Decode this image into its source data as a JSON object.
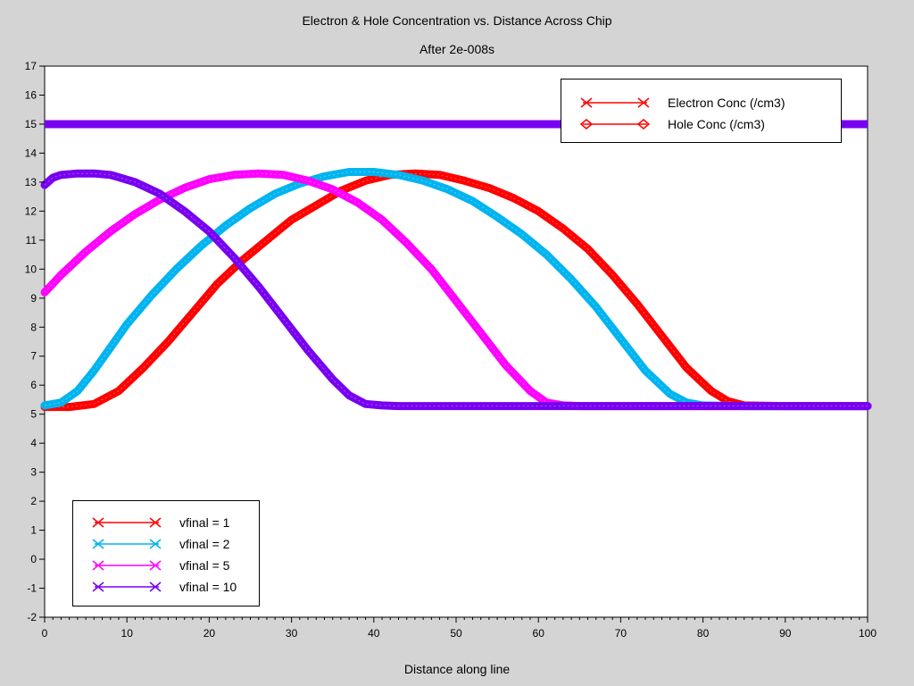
{
  "chart_data": {
    "type": "line",
    "title": "Electron & Hole Concentration vs. Distance Across Chip",
    "subtitle": "After 2e-008s",
    "xlabel": "Distance along line",
    "ylabel": "",
    "xlim": [
      0,
      100
    ],
    "ylim": [
      -2,
      17
    ],
    "x_ticks": [
      "0",
      "10",
      "20",
      "30",
      "40",
      "50",
      "60",
      "70",
      "80",
      "90",
      "100"
    ],
    "y_ticks": [
      "-2",
      "-1",
      "0",
      "1",
      "2",
      "3",
      "4",
      "5",
      "6",
      "7",
      "8",
      "9",
      "10",
      "11",
      "12",
      "13",
      "14",
      "15",
      "16",
      "17"
    ],
    "grid": false,
    "type_legend": {
      "placement": "top-right",
      "entries": [
        {
          "label": "Electron Conc (/cm3)",
          "marker": "x"
        },
        {
          "label": "Hole Conc (/cm3)",
          "marker": "diamond"
        }
      ]
    },
    "series_legend": {
      "placement": "bottom-left",
      "entries": [
        {
          "label": "vfinal = 1",
          "color": "#ff0000"
        },
        {
          "label": "vfinal = 2",
          "color": "#00b4f0"
        },
        {
          "label": "vfinal = 5",
          "color": "#ff00ff"
        },
        {
          "label": "vfinal = 10",
          "color": "#7800f0"
        }
      ]
    },
    "hole_conc": {
      "value": 15.0,
      "x": [
        0,
        100
      ]
    },
    "series": [
      {
        "name": "vfinal = 1",
        "color": "#ff0000",
        "x": [
          0,
          3,
          6,
          9,
          12,
          15,
          18,
          21,
          24,
          27,
          30,
          33,
          36,
          39,
          42,
          45,
          48,
          51,
          54,
          57,
          60,
          63,
          66,
          69,
          72,
          75,
          78,
          81,
          83,
          85,
          90,
          100
        ],
        "y": [
          5.25,
          5.25,
          5.35,
          5.8,
          6.6,
          7.5,
          8.5,
          9.5,
          10.3,
          11.0,
          11.7,
          12.2,
          12.7,
          13.05,
          13.25,
          13.3,
          13.25,
          13.05,
          12.8,
          12.45,
          12.0,
          11.4,
          10.7,
          9.8,
          8.8,
          7.7,
          6.6,
          5.8,
          5.45,
          5.3,
          5.28,
          5.28
        ]
      },
      {
        "name": "vfinal = 2",
        "color": "#00b4f0",
        "x": [
          0,
          2,
          4,
          6,
          8,
          10,
          13,
          16,
          19,
          22,
          25,
          28,
          31,
          34,
          37,
          40,
          43,
          46,
          49,
          52,
          55,
          58,
          61,
          64,
          67,
          70,
          73,
          76,
          78,
          80,
          85,
          100
        ],
        "y": [
          5.3,
          5.4,
          5.8,
          6.5,
          7.3,
          8.1,
          9.1,
          10.0,
          10.8,
          11.5,
          12.1,
          12.6,
          12.95,
          13.2,
          13.35,
          13.35,
          13.25,
          13.05,
          12.75,
          12.35,
          11.8,
          11.2,
          10.5,
          9.65,
          8.7,
          7.6,
          6.5,
          5.7,
          5.4,
          5.3,
          5.28,
          5.28
        ]
      },
      {
        "name": "vfinal = 5",
        "color": "#ff00ff",
        "x": [
          0,
          2,
          5,
          8,
          11,
          14,
          17,
          20,
          23,
          26,
          29,
          32,
          35,
          38,
          41,
          44,
          47,
          50,
          53,
          56,
          59,
          61,
          63,
          65,
          70,
          100
        ],
        "y": [
          9.2,
          9.8,
          10.6,
          11.3,
          11.9,
          12.4,
          12.8,
          13.1,
          13.25,
          13.3,
          13.25,
          13.05,
          12.75,
          12.3,
          11.7,
          10.9,
          10.0,
          8.9,
          7.8,
          6.7,
          5.8,
          5.4,
          5.3,
          5.28,
          5.28,
          5.28
        ]
      },
      {
        "name": "vfinal = 10",
        "color": "#7800f0",
        "x": [
          0,
          1,
          2,
          4,
          6,
          8,
          11,
          14,
          17,
          20,
          23,
          26,
          29,
          32,
          35,
          37,
          39,
          41,
          43,
          46,
          50,
          100
        ],
        "y": [
          12.9,
          13.15,
          13.25,
          13.3,
          13.3,
          13.25,
          13.0,
          12.6,
          12.0,
          11.3,
          10.4,
          9.4,
          8.3,
          7.2,
          6.2,
          5.65,
          5.35,
          5.3,
          5.28,
          5.28,
          5.28,
          5.28
        ]
      }
    ]
  }
}
